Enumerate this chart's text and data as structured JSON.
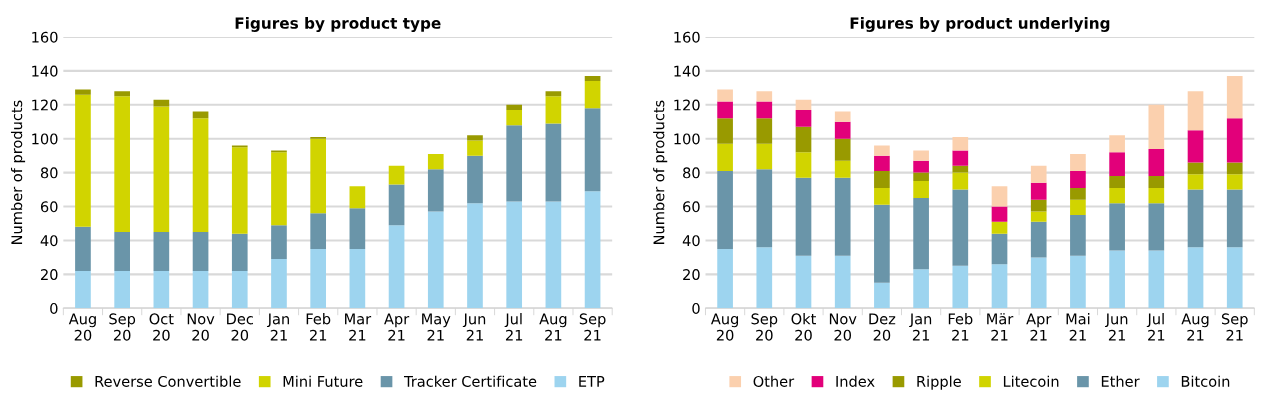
{
  "chart_data": [
    {
      "type": "bar",
      "title": "Figures by product type",
      "ylabel": "Number of products",
      "stacked": true,
      "legend": "bottom",
      "grid": "y",
      "categories": [
        "Aug\n20",
        "Sep\n20",
        "Oct\n20",
        "Nov\n20",
        "Dec\n20",
        "Jan\n21",
        "Feb\n21",
        "Mar\n21",
        "Apr\n21",
        "May\n21",
        "Jun\n21",
        "Jul\n21",
        "Aug\n21",
        "Sep\n21"
      ],
      "ylim": [
        0,
        160
      ],
      "yticks": [
        0,
        20,
        40,
        60,
        80,
        100,
        120,
        140,
        160
      ],
      "series": [
        {
          "name": "ETP",
          "color": "#9dd4ef",
          "values": [
            22,
            22,
            22,
            22,
            22,
            29,
            35,
            35,
            49,
            57,
            62,
            63,
            63,
            69
          ]
        },
        {
          "name": "Tracker Certificate",
          "color": "#6a95a9",
          "values": [
            26,
            23,
            23,
            23,
            22,
            20,
            21,
            24,
            24,
            25,
            28,
            45,
            46,
            49
          ]
        },
        {
          "name": "Mini Future",
          "color": "#d1d400",
          "values": [
            78,
            80,
            74,
            67,
            51,
            43,
            44,
            13,
            11,
            9,
            9,
            9,
            16,
            16
          ]
        },
        {
          "name": "Reverse Convertible",
          "color": "#999a00",
          "values": [
            3,
            3,
            4,
            4,
            1,
            1,
            1,
            0,
            0,
            0,
            3,
            3,
            3,
            3
          ]
        }
      ]
    },
    {
      "type": "bar",
      "title": "Figures by product underlying",
      "ylabel": "Number of products",
      "stacked": true,
      "legend": "bottom",
      "grid": "y",
      "categories": [
        "Aug\n20",
        "Sep\n20",
        "Okt\n20",
        "Nov\n20",
        "Dez\n20",
        "Jan\n21",
        "Feb\n21",
        "Mär\n21",
        "Apr\n21",
        "Mai\n21",
        "Jun\n21",
        "Jul\n21",
        "Aug\n21",
        "Sep\n21"
      ],
      "ylim": [
        0,
        160
      ],
      "yticks": [
        0,
        20,
        40,
        60,
        80,
        100,
        120,
        140,
        160
      ],
      "series": [
        {
          "name": "Bitcoin",
          "color": "#9dd4ef",
          "values": [
            35,
            36,
            31,
            31,
            15,
            23,
            25,
            26,
            30,
            31,
            34,
            34,
            36,
            36
          ]
        },
        {
          "name": "Ether",
          "color": "#6a95a9",
          "values": [
            46,
            46,
            46,
            46,
            46,
            42,
            45,
            18,
            21,
            24,
            28,
            28,
            34,
            34
          ]
        },
        {
          "name": "Litecoin",
          "color": "#d1d400",
          "values": [
            16,
            15,
            15,
            10,
            10,
            10,
            10,
            7,
            6,
            9,
            9,
            9,
            9,
            9
          ]
        },
        {
          "name": "Ripple",
          "color": "#999a00",
          "values": [
            15,
            15,
            15,
            13,
            10,
            5,
            4,
            0,
            7,
            7,
            7,
            7,
            7,
            7
          ]
        },
        {
          "name": "Index",
          "color": "#e2007a",
          "values": [
            10,
            10,
            10,
            10,
            9,
            7,
            9,
            9,
            10,
            10,
            14,
            16,
            19,
            26
          ]
        },
        {
          "name": "Other",
          "color": "#fbd0ae",
          "values": [
            7,
            6,
            6,
            6,
            6,
            6,
            8,
            12,
            10,
            10,
            10,
            26,
            23,
            25
          ]
        }
      ]
    }
  ]
}
